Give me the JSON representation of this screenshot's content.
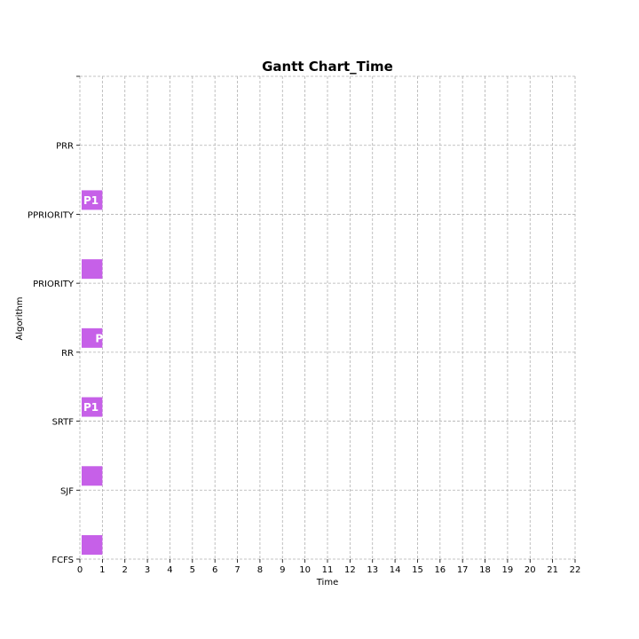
{
  "chart_data": {
    "type": "bar",
    "orientation": "gantt-horizontal",
    "title": "Gantt Chart_Time",
    "xlabel": "Time",
    "ylabel": "Algorithm",
    "xlim": [
      0,
      22
    ],
    "x_ticks": [
      0,
      1,
      2,
      3,
      4,
      5,
      6,
      7,
      8,
      9,
      10,
      11,
      12,
      13,
      14,
      15,
      16,
      17,
      18,
      19,
      20,
      21,
      22
    ],
    "categories": [
      "FCFS",
      "SJF",
      "SRTF",
      "RR",
      "PRIORITY",
      "PPRIORITY",
      "PRR"
    ],
    "grid": true,
    "bar_color": "#c660e8",
    "tasks": [
      {
        "algorithm": "FCFS",
        "start": 0,
        "end": 1,
        "label": ""
      },
      {
        "algorithm": "SJF",
        "start": 0,
        "end": 1,
        "label": ""
      },
      {
        "algorithm": "SRTF",
        "start": 0,
        "end": 1,
        "label": "P1"
      },
      {
        "algorithm": "RR",
        "start": 0,
        "end": 1,
        "label": "P"
      },
      {
        "algorithm": "PRIORITY",
        "start": 0,
        "end": 1,
        "label": ""
      },
      {
        "algorithm": "PPRIORITY",
        "start": 0,
        "end": 1,
        "label": "P1"
      }
    ]
  }
}
